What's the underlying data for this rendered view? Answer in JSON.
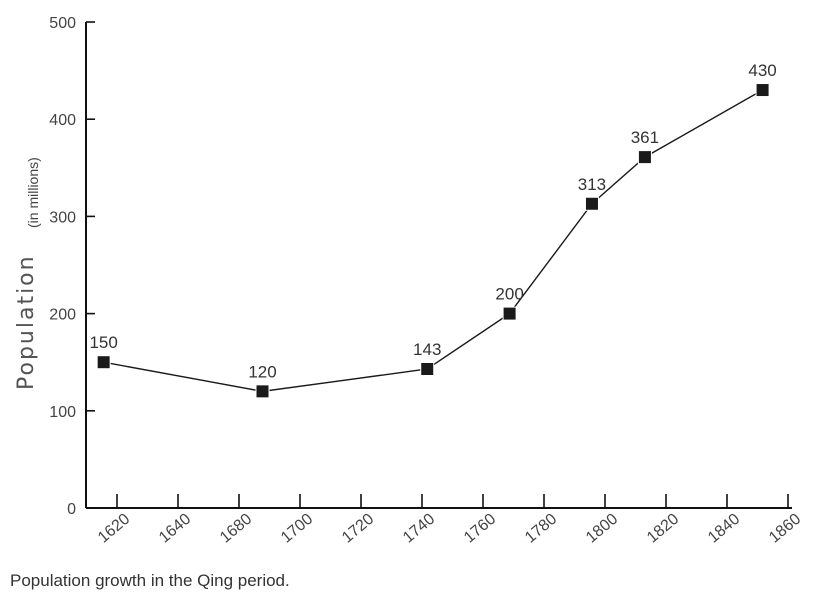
{
  "caption": "Population growth in the Qing period.",
  "chart_data": {
    "type": "line",
    "title": "",
    "xlabel": "",
    "ylabel": "Population",
    "ylabel_unit": "(in millions)",
    "xlim": [
      1620,
      1860
    ],
    "ylim": [
      0,
      500
    ],
    "xticks": [
      1620,
      1640,
      1680,
      1700,
      1720,
      1740,
      1760,
      1780,
      1800,
      1820,
      1840,
      1860
    ],
    "yticks": [
      0,
      100,
      200,
      300,
      400,
      500
    ],
    "grid": false,
    "series": [
      {
        "x": [
          1626,
          1680,
          1736,
          1764,
          1792,
          1810,
          1850
        ],
        "y": [
          150,
          120,
          143,
          200,
          313,
          361,
          430
        ],
        "labels": [
          "150",
          "120",
          "143",
          "200",
          "313",
          "361",
          "430"
        ]
      }
    ],
    "marker": "square",
    "color": "#1a1a1a"
  }
}
